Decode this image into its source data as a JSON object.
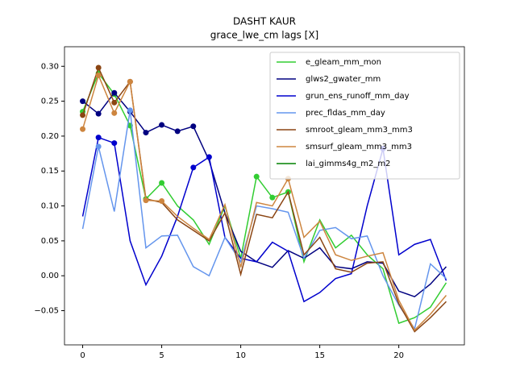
{
  "chart_data": {
    "type": "line",
    "title": "DASHT KAUR",
    "subtitle": "grace_lwe_cm lags [X]",
    "x": [
      0,
      1,
      2,
      3,
      4,
      5,
      6,
      7,
      8,
      9,
      10,
      11,
      12,
      13,
      14,
      15,
      16,
      17,
      18,
      19,
      20,
      21,
      22,
      23
    ],
    "xlim": [
      -1.15,
      24.15
    ],
    "xticks": [
      0,
      5,
      10,
      15,
      20
    ],
    "ylim": [
      -0.099,
      0.328
    ],
    "yticks": [
      {
        "value": -0.05,
        "label": "−0.05"
      },
      {
        "value": 0,
        "label": "0.00"
      },
      {
        "value": 0.05,
        "label": "0.05"
      },
      {
        "value": 0.1,
        "label": "0.10"
      },
      {
        "value": 0.15,
        "label": "0.15"
      },
      {
        "value": 0.2,
        "label": "0.20"
      },
      {
        "value": 0.25,
        "label": "0.25"
      },
      {
        "value": 0.3,
        "label": "0.30"
      }
    ],
    "legend": "upper right",
    "series": [
      {
        "name": "e_gleam_mm_mon",
        "color": "#32cd32",
        "values": [
          0.235,
          0.29,
          0.26,
          0.215,
          0.11,
          0.133,
          0.1,
          0.08,
          0.045,
          0.1,
          0.025,
          0.142,
          0.112,
          0.12,
          0.02,
          0.08,
          0.04,
          0.058,
          0.03,
          0.01,
          -0.068,
          -0.06,
          -0.045,
          -0.01
        ],
        "markers": [
          0,
          1,
          2,
          3,
          4,
          5,
          11,
          12,
          13
        ]
      },
      {
        "name": "glws2_gwater_mm",
        "color": "#000080",
        "values": [
          0.25,
          0.232,
          0.262,
          0.235,
          0.205,
          0.216,
          0.207,
          0.214,
          0.165,
          0.09,
          0.035,
          0.02,
          0.012,
          0.036,
          0.025,
          0.04,
          0.013,
          0.01,
          0.02,
          0.018,
          -0.022,
          -0.03,
          -0.012,
          0.013
        ],
        "markers": [
          0,
          1,
          2,
          3,
          4,
          5,
          6,
          7
        ]
      },
      {
        "name": "grun_ens_runoff_mm_day",
        "color": "#0000cd",
        "values": [
          0.085,
          0.198,
          0.19,
          0.05,
          -0.013,
          0.028,
          0.085,
          0.155,
          0.17,
          0.055,
          0.025,
          0.02,
          0.048,
          0.035,
          -0.037,
          -0.024,
          -0.004,
          0.003,
          0.1,
          0.182,
          0.03,
          0.045,
          0.052,
          -0.007
        ],
        "markers": [
          1,
          2,
          7,
          8,
          19
        ]
      },
      {
        "name": "prec_fldas_mm_day",
        "color": "#6495ed",
        "values": [
          0.067,
          0.185,
          0.092,
          0.237,
          0.04,
          0.057,
          0.058,
          0.013,
          0.0,
          0.055,
          0.02,
          0.1,
          0.096,
          0.091,
          0.025,
          0.065,
          0.069,
          0.053,
          0.057,
          0.0,
          -0.042,
          -0.076,
          0.017,
          -0.004
        ],
        "markers": [
          1,
          3
        ]
      },
      {
        "name": "smroot_gleam_mm3_mm3",
        "color": "#8b4513",
        "values": [
          0.23,
          0.298,
          0.248,
          0.278,
          0.11,
          0.105,
          0.08,
          0.065,
          0.05,
          0.09,
          0.002,
          0.088,
          0.083,
          0.12,
          0.03,
          0.055,
          0.01,
          0.005,
          0.018,
          0.02,
          -0.04,
          -0.08,
          -0.06,
          -0.037
        ],
        "markers": [
          0,
          1,
          2,
          3
        ]
      },
      {
        "name": "smsurf_gleam_mm3_mm3",
        "color": "#cd853f",
        "values": [
          0.21,
          0.287,
          0.233,
          0.278,
          0.108,
          0.107,
          0.085,
          0.068,
          0.052,
          0.102,
          0.012,
          0.105,
          0.1,
          0.139,
          0.055,
          0.078,
          0.03,
          0.022,
          0.028,
          0.033,
          -0.035,
          -0.078,
          -0.055,
          -0.028
        ],
        "markers": [
          0,
          1,
          2,
          3,
          4,
          5,
          13
        ]
      },
      {
        "name": "lai_gimms4g_m2_m2",
        "color": "#008000",
        "values": [
          null,
          null,
          null,
          null,
          null,
          null,
          null,
          null,
          null,
          null,
          null,
          null,
          null,
          null,
          null,
          null,
          null,
          null,
          null,
          null,
          null,
          null,
          null,
          null
        ],
        "markers": []
      }
    ]
  }
}
